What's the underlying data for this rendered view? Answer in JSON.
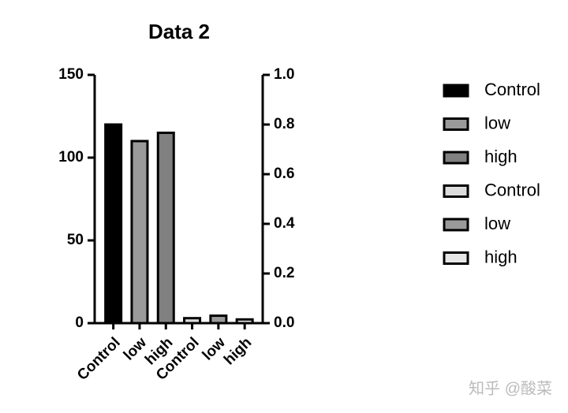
{
  "chart_data": {
    "type": "bar",
    "title": "Data 2",
    "categories": [
      "Control",
      "low",
      "high",
      "Control",
      "low",
      "high"
    ],
    "series": [
      {
        "name": "Control",
        "color": "#000000",
        "axis": "y",
        "values": [
          120,
          null,
          null,
          null,
          null,
          null
        ]
      },
      {
        "name": "low",
        "color": "#9a9a9a",
        "axis": "y",
        "values": [
          null,
          110,
          null,
          null,
          null,
          null
        ]
      },
      {
        "name": "high",
        "color": "#808080",
        "axis": "y",
        "values": [
          null,
          null,
          115,
          null,
          null,
          null
        ]
      },
      {
        "name": "Control",
        "color": "#dcdcdc",
        "axis": "y2",
        "values": [
          null,
          null,
          null,
          0.02,
          null,
          null
        ]
      },
      {
        "name": "low",
        "color": "#9a9a9a",
        "axis": "y2",
        "values": [
          null,
          null,
          null,
          null,
          0.03,
          null
        ]
      },
      {
        "name": "high",
        "color": "#e6e6e6",
        "axis": "y2",
        "values": [
          null,
          null,
          null,
          null,
          null,
          0.015
        ]
      }
    ],
    "ylim": [
      0,
      150
    ],
    "yticks": [
      0,
      50,
      100,
      150
    ],
    "y2lim": [
      0,
      1
    ],
    "y2ticks": [
      {
        "value": 0,
        "label": "0.0"
      },
      0.2,
      0.4,
      0.6,
      0.8,
      {
        "value": 1,
        "label": "1.0"
      }
    ],
    "legend": "right",
    "grid": false
  },
  "watermark": "知乎 @酸菜"
}
